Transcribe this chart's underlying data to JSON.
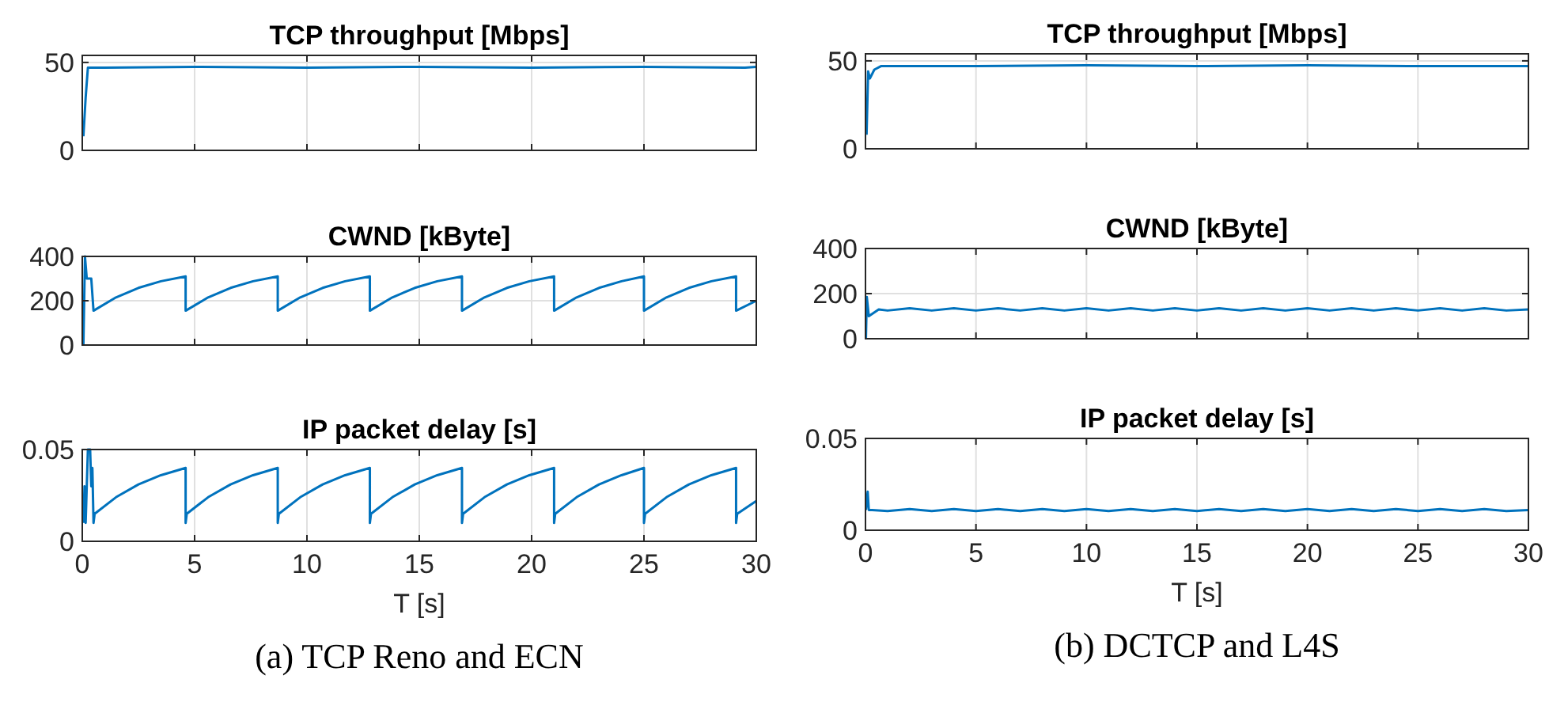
{
  "chart_data": [
    {
      "type": "line",
      "title": "TCP throughput [Mbps]",
      "xlim": [
        0,
        30
      ],
      "xticks": [
        0,
        5,
        10,
        15,
        20,
        25,
        30
      ],
      "ylim": [
        0,
        54
      ],
      "yticks": [
        0,
        50
      ],
      "grid": true,
      "tick_labels": "y",
      "series": [
        {
          "color": "#0072bd",
          "x": [
            0.05,
            0.15,
            0.25,
            1,
            5,
            10,
            15,
            20,
            25,
            29.5,
            30
          ],
          "values": [
            8,
            30,
            47,
            47,
            47.5,
            47,
            47.5,
            47,
            47.5,
            47,
            47.5
          ]
        }
      ]
    },
    {
      "type": "line",
      "title": "TCP throughput [Mbps]",
      "xlim": [
        0,
        30
      ],
      "xticks": [
        0,
        5,
        10,
        15,
        20,
        25,
        30
      ],
      "ylim": [
        0,
        54
      ],
      "yticks": [
        0,
        50
      ],
      "grid": true,
      "tick_labels": "y",
      "series": [
        {
          "color": "#0072bd",
          "x": [
            0.05,
            0.12,
            0.2,
            0.4,
            0.7,
            5,
            10,
            15,
            20,
            25,
            30
          ],
          "values": [
            8,
            44,
            40,
            45,
            47,
            47,
            47.5,
            47,
            47.5,
            47,
            47
          ]
        }
      ]
    },
    {
      "type": "line",
      "title": "CWND [kByte]",
      "xlim": [
        0,
        30
      ],
      "xticks": [
        0,
        5,
        10,
        15,
        20,
        25,
        30
      ],
      "ylim": [
        0,
        400
      ],
      "yticks": [
        0,
        200,
        400
      ],
      "grid": true,
      "tick_labels": "y",
      "series": [
        {
          "color": "#0072bd",
          "x": [
            0.05,
            0.12,
            0.2,
            0.4,
            0.5,
            1.5,
            2.5,
            3.5,
            4.6,
            4.6,
            5.6,
            6.6,
            7.6,
            8.7,
            8.7,
            9.7,
            10.7,
            11.7,
            12.8,
            12.8,
            13.8,
            14.8,
            15.8,
            16.9,
            16.9,
            17.9,
            18.9,
            19.9,
            21.0,
            21.0,
            22.0,
            23.0,
            24.0,
            25.0,
            25.0,
            26.0,
            27.0,
            28.0,
            29.1,
            29.1,
            30
          ],
          "values": [
            0,
            400,
            300,
            300,
            155,
            215,
            258,
            288,
            310,
            155,
            215,
            258,
            288,
            310,
            155,
            215,
            258,
            288,
            310,
            155,
            215,
            258,
            288,
            310,
            155,
            215,
            258,
            288,
            310,
            155,
            215,
            258,
            288,
            310,
            155,
            215,
            258,
            288,
            310,
            155,
            200
          ]
        }
      ]
    },
    {
      "type": "line",
      "title": "CWND [kByte]",
      "xlim": [
        0,
        30
      ],
      "xticks": [
        0,
        5,
        10,
        15,
        20,
        25,
        30
      ],
      "ylim": [
        0,
        400
      ],
      "yticks": [
        0,
        200,
        400
      ],
      "grid": true,
      "tick_labels": "y",
      "series": [
        {
          "color": "#0072bd",
          "x": [
            0.02,
            0.06,
            0.15,
            0.6,
            1,
            2,
            3,
            4,
            5,
            6,
            7,
            8,
            9,
            10,
            11,
            12,
            13,
            14,
            15,
            16,
            17,
            18,
            19,
            20,
            21,
            22,
            23,
            24,
            25,
            26,
            27,
            28,
            29,
            30
          ],
          "values": [
            0,
            185,
            100,
            130,
            125,
            135,
            125,
            135,
            125,
            135,
            125,
            135,
            125,
            135,
            125,
            135,
            125,
            135,
            125,
            135,
            125,
            135,
            125,
            135,
            125,
            135,
            125,
            135,
            125,
            135,
            125,
            135,
            125,
            130
          ]
        }
      ]
    },
    {
      "type": "line",
      "title": "IP packet delay [s]",
      "xlabel": "T [s]",
      "annotations": [
        "(a) TCP Reno and ECN"
      ],
      "xlim": [
        0,
        30
      ],
      "xticks": [
        0,
        5,
        10,
        15,
        20,
        25,
        30
      ],
      "ylim": [
        0,
        0.05
      ],
      "yticks": [
        0,
        0.05
      ],
      "grid": true,
      "series": [
        {
          "color": "#0072bd",
          "x": [
            0.05,
            0.1,
            0.15,
            0.25,
            0.35,
            0.4,
            0.45,
            0.5,
            0.55,
            1.5,
            2.5,
            3.5,
            4.6,
            4.6,
            4.65,
            5.6,
            6.6,
            7.6,
            8.7,
            8.7,
            8.75,
            9.7,
            10.7,
            11.7,
            12.8,
            12.8,
            12.85,
            13.8,
            14.8,
            15.8,
            16.9,
            16.9,
            16.95,
            17.9,
            18.9,
            19.9,
            21.0,
            21.0,
            21.05,
            22.0,
            23.0,
            24.0,
            25.0,
            25.0,
            25.05,
            26.0,
            27.0,
            28.0,
            29.1,
            29.1,
            29.15,
            30
          ],
          "values": [
            0.01,
            0.03,
            0.01,
            0.05,
            0.05,
            0.03,
            0.04,
            0.01,
            0.015,
            0.024,
            0.031,
            0.036,
            0.04,
            0.01,
            0.015,
            0.024,
            0.031,
            0.036,
            0.04,
            0.01,
            0.015,
            0.024,
            0.031,
            0.036,
            0.04,
            0.01,
            0.015,
            0.024,
            0.031,
            0.036,
            0.04,
            0.01,
            0.015,
            0.024,
            0.031,
            0.036,
            0.04,
            0.01,
            0.015,
            0.024,
            0.031,
            0.036,
            0.04,
            0.01,
            0.015,
            0.024,
            0.031,
            0.036,
            0.04,
            0.01,
            0.015,
            0.022
          ]
        }
      ]
    },
    {
      "type": "line",
      "title": "IP packet delay [s]",
      "xlabel": "T [s]",
      "annotations": [
        "(b) DCTCP and L4S"
      ],
      "xlim": [
        0,
        30
      ],
      "xticks": [
        0,
        5,
        10,
        15,
        20,
        25,
        30
      ],
      "ylim": [
        0,
        0.05
      ],
      "yticks": [
        0,
        0.05
      ],
      "grid": true,
      "series": [
        {
          "color": "#0072bd",
          "x": [
            0.02,
            0.1,
            0.15,
            0.3,
            1,
            2,
            3,
            4,
            5,
            6,
            7,
            8,
            9,
            10,
            11,
            12,
            13,
            14,
            15,
            16,
            17,
            18,
            19,
            20,
            21,
            22,
            23,
            24,
            25,
            26,
            27,
            28,
            29,
            30
          ],
          "values": [
            0.011,
            0.021,
            0.011,
            0.011,
            0.0105,
            0.0115,
            0.0105,
            0.0115,
            0.0105,
            0.0115,
            0.0105,
            0.0115,
            0.0105,
            0.0115,
            0.0105,
            0.0115,
            0.0105,
            0.0115,
            0.0105,
            0.0115,
            0.0105,
            0.0115,
            0.0105,
            0.0115,
            0.0105,
            0.0115,
            0.0105,
            0.0115,
            0.0105,
            0.0115,
            0.0105,
            0.0115,
            0.0105,
            0.011
          ]
        }
      ]
    }
  ]
}
